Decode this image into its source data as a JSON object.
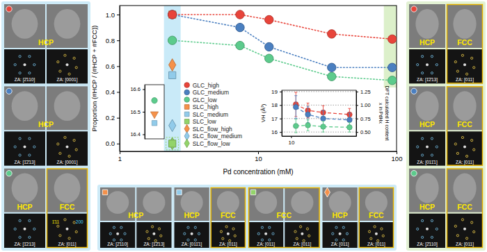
{
  "chart_data": [
    {
      "type": "line",
      "xlabel": "Pd concentration (mM)",
      "ylabel": "Proportion (#HCP / (#HCP + #FCC))",
      "log": "x",
      "xlim": [
        1,
        100
      ],
      "xticks": [
        1,
        10,
        100
      ],
      "ylim": [
        -0.06,
        1.07
      ],
      "yticks": [
        {
          "value": 0,
          "label": "0.0"
        },
        {
          "value": 0.2,
          "label": "0.2"
        },
        {
          "value": 0.4,
          "label": "0.4"
        },
        {
          "value": 0.6,
          "label": "0.6"
        },
        {
          "value": 0.8,
          "label": "0.8"
        },
        {
          "value": 1.0,
          "label": "1.0"
        }
      ],
      "legend": "lower-left",
      "series": [
        {
          "name": "GLC_high",
          "color": "#e8443a",
          "marker": "circle",
          "line_style": "dotted",
          "x": [
            2.4,
            7.4,
            12,
            34,
            93
          ],
          "values": [
            1.0,
            1.0,
            0.96,
            0.85,
            0.81
          ]
        },
        {
          "name": "GLC_medium",
          "color": "#4a7fc0",
          "marker": "circle",
          "line_style": "dotted",
          "x": [
            2.4,
            7.4,
            12,
            34,
            93
          ],
          "values": [
            1.0,
            0.9,
            0.75,
            0.59,
            0.59
          ]
        },
        {
          "name": "GLC_low",
          "color": "#5ccb8c",
          "marker": "circle",
          "line_style": "dotted",
          "x": [
            2.4,
            7.4,
            12,
            34,
            93
          ],
          "values": [
            0.8,
            0.76,
            0.66,
            0.52,
            0.49
          ]
        },
        {
          "name": "SLC_high",
          "color": "#f5914a",
          "marker": "square",
          "line_style": "none",
          "x": [
            2.4
          ],
          "values": [
            1.0
          ]
        },
        {
          "name": "SLC_medium",
          "color": "#91cbea",
          "marker": "square",
          "line_style": "none",
          "x": [
            2.4
          ],
          "values": [
            0.53
          ]
        },
        {
          "name": "SLC_low",
          "color": "#93d46a",
          "marker": "square",
          "line_style": "none",
          "x": [
            2.4
          ],
          "values": [
            0.0
          ]
        },
        {
          "name": "SLC_flow_high",
          "color": "#f5914a",
          "marker": "diamond",
          "line_style": "none",
          "x": [
            2.4
          ],
          "values": [
            0.61
          ]
        },
        {
          "name": "SLC_flow_medium",
          "color": "#91cbea",
          "marker": "diamond",
          "line_style": "none",
          "x": [
            2.4
          ],
          "values": [
            0.14
          ]
        },
        {
          "name": "SLC_flow_low",
          "color": "#93d46a",
          "marker": "diamond",
          "line_style": "none",
          "x": [
            2.4
          ],
          "values": [
            0.0
          ]
        }
      ]
    },
    {
      "type": "line",
      "ylabel": "VH (Å³)",
      "y2label": "DFT calculated H content x in PdHx",
      "log": "x",
      "grid": true,
      "xlim": [
        7,
        120
      ],
      "xticks": [
        10
      ],
      "ylim": [
        15.7,
        19.1
      ],
      "yticks": [
        16,
        17,
        18,
        19
      ],
      "y2lim": [
        0.425,
        1.275
      ],
      "y2ticks": [
        {
          "value": 0.5,
          "label": "0.50"
        },
        {
          "value": 0.75,
          "label": "0.75"
        },
        {
          "value": 1.0,
          "label": "1.00"
        },
        {
          "value": 1.25,
          "label": "1.25"
        }
      ],
      "series": [
        {
          "color": "#e8443a",
          "marker": "circle",
          "line_style": "dashed",
          "x": [
            12,
            19,
            34,
            93
          ],
          "values": [
            18.05,
            17.6,
            17.45,
            17.3
          ],
          "errors": [
            0.9,
            0.55,
            0.5,
            0.45
          ]
        },
        {
          "color": "#4a7fc0",
          "marker": "circle",
          "line_style": "dashed",
          "x": [
            12,
            19,
            34,
            93
          ],
          "values": [
            17.85,
            17.3,
            17.0,
            16.9
          ],
          "errors": [
            0.85,
            0.6,
            0.6,
            0.5
          ]
        },
        {
          "color": "#5ccb8c",
          "marker": "circle",
          "line_style": "dashed",
          "x": [
            12,
            19,
            34,
            93
          ],
          "values": [
            16.45,
            16.5,
            16.4,
            16.35
          ],
          "errors": [
            0.5,
            0.4,
            0.4,
            0.35
          ]
        }
      ]
    },
    {
      "type": "scatter",
      "tick_labels": "y",
      "categories": [
        null
      ],
      "ylim": [
        16.38,
        16.62
      ],
      "yticks": [
        16.4,
        16.5,
        16.6
      ],
      "series": [
        {
          "color": "#5ccb8c",
          "marker": "circle",
          "values": [
            16.55
          ]
        },
        {
          "color": "#f5914a",
          "marker": "triangle-down",
          "values": [
            16.49
          ]
        },
        {
          "color": "#91cbea",
          "marker": "square",
          "values": [
            16.45
          ]
        }
      ]
    }
  ],
  "panels": {
    "left": [
      {
        "series": "GLC_high",
        "phases": [
          "HCP"
        ],
        "zone_axes": [
          "ZA: [2̄110]",
          "ZA: [0001]"
        ]
      },
      {
        "series": "GLC_medium",
        "phases": [
          "HCP"
        ],
        "zone_axes": [
          "ZA: [1̄2̄13]",
          "ZA: [0001]"
        ]
      },
      {
        "series": "GLC_low",
        "phases": [
          "HCP",
          "FCC"
        ],
        "zone_axes": [
          "ZA: [1̄213]",
          "ZA: [011]"
        ],
        "spot_labels": [
          "1̄11",
          "200"
        ]
      }
    ],
    "right": [
      {
        "series": "GLC_high",
        "phases": [
          "HCP",
          "FCC"
        ],
        "zone_axes": [
          "ZA: [1̄2̄13]",
          "ZA: [011]"
        ]
      },
      {
        "series": "GLC_medium",
        "phases": [
          "HCP",
          "FCC"
        ],
        "zone_axes": [
          "ZA: [011̄1]",
          "ZA: [011]"
        ]
      },
      {
        "series": "GLC_low",
        "phases": [
          "HCP",
          "FCC"
        ],
        "zone_axes": [
          "ZA: [2̄110]",
          "ZA: [011]"
        ]
      }
    ],
    "bottom": [
      {
        "series": "SLC_high",
        "phases": [
          "HCP"
        ],
        "zone_axes": [
          "ZA: [2̄110]",
          "ZA: [1̄2̄13]"
        ]
      },
      {
        "series": "SLC_medium",
        "phases": [
          "HCP",
          "FCC"
        ],
        "zone_axes": [
          "ZA: [011̄1]",
          "ZA: [011]"
        ]
      },
      {
        "series": "SLC_low",
        "phases": [
          "FCC"
        ],
        "zone_axes": [
          "ZA: [011]",
          "ZA: [011]"
        ]
      },
      {
        "series": "SLC_flow_high",
        "phases": [
          "HCP",
          "FCC"
        ],
        "zone_axes": [
          "ZA: [011]",
          "ZA: [011]"
        ]
      }
    ]
  }
}
